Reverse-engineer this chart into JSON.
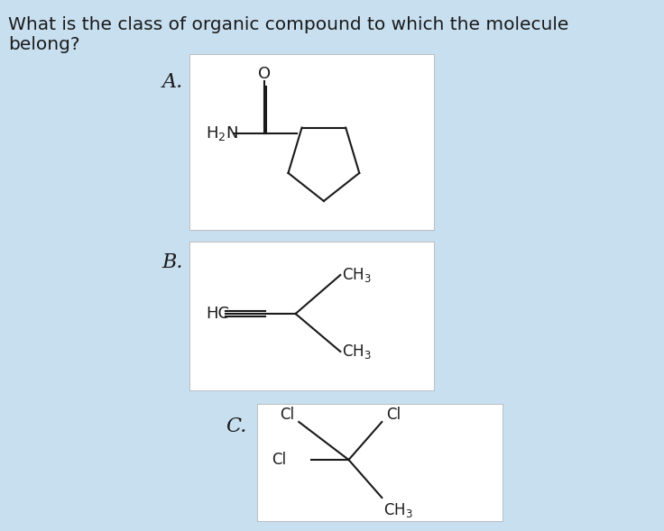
{
  "bg_color": "#c8dff0",
  "white": "#ffffff",
  "black": "#1a1a1a",
  "question": "What is the class of organic compound to which the molecule\nbelong?",
  "question_fontsize": 14.5,
  "label_A": "A.",
  "label_B": "B.",
  "label_C": "C.",
  "label_fontsize": 16
}
